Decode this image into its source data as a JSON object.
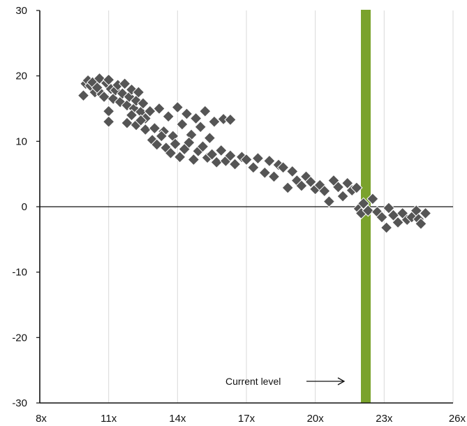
{
  "chart_data": {
    "type": "scatter",
    "title": "",
    "xlabel": "",
    "ylabel": "",
    "xlim": [
      8,
      26
    ],
    "ylim": [
      -30,
      30
    ],
    "x_ticks": [
      8,
      11,
      14,
      17,
      20,
      23,
      26
    ],
    "x_tick_labels": [
      "8x",
      "11x",
      "14x",
      "17x",
      "20x",
      "23x",
      "26x"
    ],
    "y_ticks": [
      30,
      20,
      10,
      0,
      -10,
      -20,
      -30
    ],
    "y_tick_labels": [
      "30",
      "20",
      "10",
      "0",
      "-10",
      "-20",
      "-30"
    ],
    "grid": "vertical",
    "zero_line": 0,
    "current_level": {
      "x": 22.2,
      "label": "Current level",
      "color": "#7aa22c"
    },
    "marker": {
      "shape": "diamond",
      "color": "#555555",
      "stroke": "#ffffff"
    },
    "series": [
      {
        "points": [
          [
            9.9,
            17.0
          ],
          [
            10.0,
            18.8
          ],
          [
            10.1,
            19.3
          ],
          [
            10.2,
            18.5
          ],
          [
            10.3,
            19.0
          ],
          [
            10.4,
            17.5
          ],
          [
            10.5,
            18.2
          ],
          [
            10.6,
            19.6
          ],
          [
            10.7,
            17.2
          ],
          [
            10.8,
            16.8
          ],
          [
            10.9,
            18.9
          ],
          [
            11.0,
            19.4
          ],
          [
            11.1,
            18.0
          ],
          [
            11.2,
            16.5
          ],
          [
            11.3,
            17.8
          ],
          [
            11.4,
            18.6
          ],
          [
            11.5,
            16.0
          ],
          [
            11.6,
            17.3
          ],
          [
            11.7,
            18.8
          ],
          [
            11.8,
            15.5
          ],
          [
            11.9,
            16.8
          ],
          [
            12.0,
            17.9
          ],
          [
            12.1,
            15.0
          ],
          [
            12.2,
            16.2
          ],
          [
            12.3,
            17.5
          ],
          [
            12.4,
            14.5
          ],
          [
            12.5,
            15.8
          ],
          [
            12.6,
            13.5
          ],
          [
            11.8,
            12.8
          ],
          [
            12.0,
            14.0
          ],
          [
            12.2,
            12.5
          ],
          [
            12.4,
            13.2
          ],
          [
            12.6,
            11.8
          ],
          [
            12.8,
            14.6
          ],
          [
            13.0,
            12.0
          ],
          [
            13.2,
            15.0
          ],
          [
            13.4,
            11.5
          ],
          [
            13.6,
            13.8
          ],
          [
            13.8,
            10.8
          ],
          [
            14.0,
            15.2
          ],
          [
            14.2,
            12.6
          ],
          [
            14.4,
            14.2
          ],
          [
            14.6,
            11.0
          ],
          [
            14.8,
            13.5
          ],
          [
            15.0,
            12.2
          ],
          [
            15.2,
            14.6
          ],
          [
            15.4,
            10.5
          ],
          [
            15.6,
            13.0
          ],
          [
            16.0,
            13.4
          ],
          [
            16.3,
            13.3
          ],
          [
            11.0,
            14.6
          ],
          [
            11.0,
            13.0
          ],
          [
            12.9,
            10.2
          ],
          [
            13.1,
            9.5
          ],
          [
            13.3,
            10.8
          ],
          [
            13.5,
            9.0
          ],
          [
            13.7,
            8.2
          ],
          [
            13.9,
            9.6
          ],
          [
            14.1,
            7.6
          ],
          [
            14.3,
            8.8
          ],
          [
            14.5,
            9.8
          ],
          [
            14.7,
            7.2
          ],
          [
            14.9,
            8.5
          ],
          [
            15.1,
            9.2
          ],
          [
            15.3,
            7.5
          ],
          [
            15.5,
            8.0
          ],
          [
            15.7,
            6.8
          ],
          [
            15.9,
            8.6
          ],
          [
            16.1,
            7.0
          ],
          [
            16.3,
            7.8
          ],
          [
            16.5,
            6.5
          ],
          [
            16.8,
            7.6
          ],
          [
            17.0,
            7.2
          ],
          [
            17.3,
            6.0
          ],
          [
            17.5,
            7.4
          ],
          [
            17.8,
            5.2
          ],
          [
            18.0,
            7.0
          ],
          [
            18.2,
            4.6
          ],
          [
            18.4,
            6.4
          ],
          [
            18.6,
            6.0
          ],
          [
            18.8,
            2.9
          ],
          [
            19.0,
            5.4
          ],
          [
            19.2,
            4.0
          ],
          [
            19.4,
            3.2
          ],
          [
            19.6,
            4.6
          ],
          [
            19.8,
            3.8
          ],
          [
            20.0,
            2.7
          ],
          [
            20.2,
            3.3
          ],
          [
            20.4,
            2.4
          ],
          [
            20.6,
            0.8
          ],
          [
            20.8,
            4.0
          ],
          [
            21.0,
            3.0
          ],
          [
            21.2,
            1.6
          ],
          [
            21.4,
            3.6
          ],
          [
            21.6,
            2.5
          ],
          [
            21.8,
            2.9
          ],
          [
            21.9,
            -0.3
          ],
          [
            22.0,
            -1.0
          ],
          [
            22.1,
            0.5
          ],
          [
            22.3,
            -0.6
          ],
          [
            22.5,
            1.2
          ],
          [
            22.7,
            -0.8
          ],
          [
            22.9,
            -1.6
          ],
          [
            23.1,
            -3.2
          ],
          [
            23.2,
            -0.2
          ],
          [
            23.4,
            -1.3
          ],
          [
            23.6,
            -2.4
          ],
          [
            23.8,
            -1.0
          ],
          [
            24.0,
            -2.0
          ],
          [
            24.2,
            -1.6
          ],
          [
            24.4,
            -0.6
          ],
          [
            24.5,
            -1.9
          ],
          [
            24.6,
            -2.6
          ],
          [
            24.8,
            -1.0
          ]
        ]
      }
    ]
  }
}
